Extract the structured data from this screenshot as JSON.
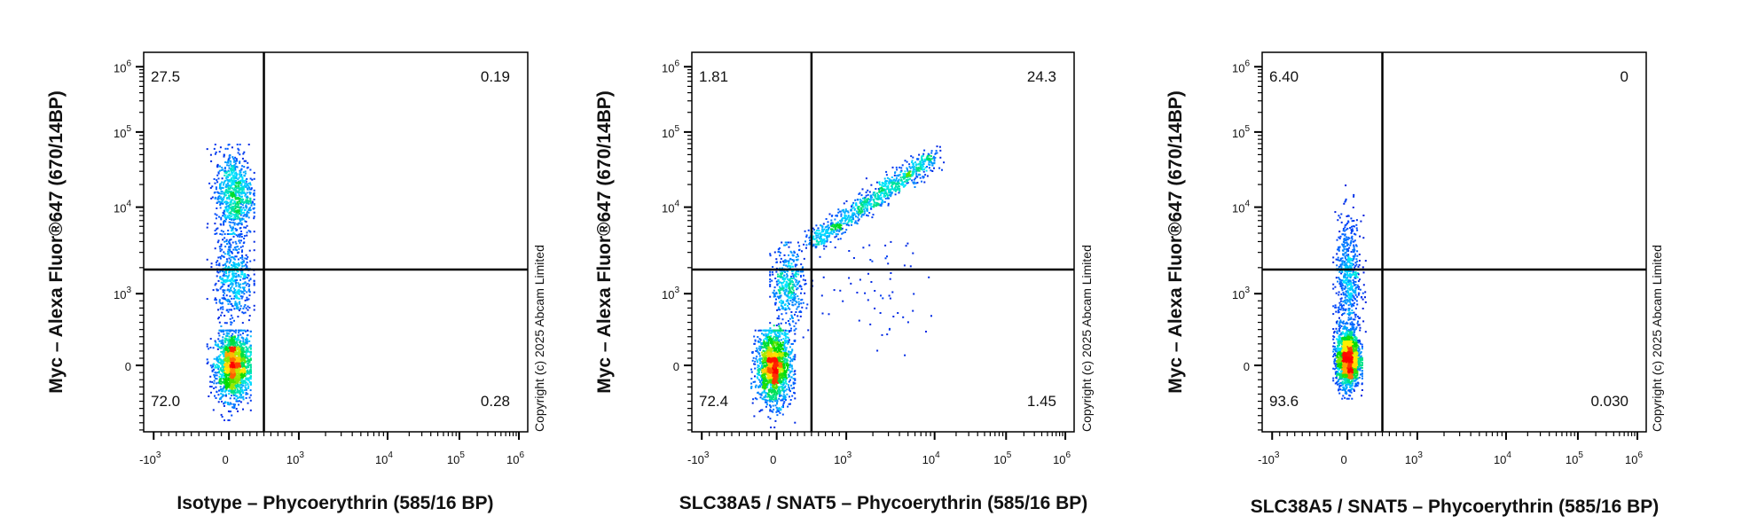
{
  "chart_data": [
    {
      "type": "scatter",
      "subtype": "flow-cytometry-density-dot-plot",
      "xlabel": "Isotype – Phycoerythrin (585/16 BP)",
      "ylabel": "Myc – Alexa Fluor®647 (670/14BP)",
      "x_scale": "biexponential",
      "y_scale": "biexponential",
      "xlim": [
        -2000,
        1000000
      ],
      "ylim": [
        -2000,
        1000000
      ],
      "x_ticks": [
        "-10^3",
        "0",
        "10^3",
        "10^4",
        "10^5",
        "10^6"
      ],
      "y_ticks": [
        "0",
        "10^3",
        "10^4",
        "10^5",
        "10^6"
      ],
      "quadrant_gate": {
        "x": 500,
        "y": 1900
      },
      "quadrants": {
        "upper_left": "27.5",
        "upper_right": "0.19",
        "lower_left": "72.0",
        "lower_right": "0.28"
      },
      "populations": [
        {
          "center": [
            50,
            0
          ],
          "x_range": [
            -300,
            300
          ],
          "y_range": [
            -700,
            500
          ],
          "count": 1600
        },
        {
          "center": [
            60,
            15000
          ],
          "x_range": [
            -300,
            350
          ],
          "y_range": [
            3000,
            70000
          ],
          "count": 800
        },
        {
          "center": [
            60,
            1500
          ],
          "x_range": [
            -300,
            350
          ],
          "y_range": [
            300,
            5000
          ],
          "count": 500
        }
      ],
      "copyright": "Copyright (c) 2025 Abcam Limited"
    },
    {
      "type": "scatter",
      "subtype": "flow-cytometry-density-dot-plot",
      "xlabel": "SLC38A5 / SNAT5 – Phycoerythrin (585/16 BP)",
      "ylabel": "Myc – Alexa Fluor®647 (670/14BP)",
      "x_scale": "biexponential",
      "y_scale": "biexponential",
      "xlim": [
        -2000,
        1000000
      ],
      "ylim": [
        -2000,
        1000000
      ],
      "x_ticks": [
        "-10^3",
        "0",
        "10^3",
        "10^4",
        "10^5",
        "10^6"
      ],
      "y_ticks": [
        "0",
        "10^3",
        "10^4",
        "10^5",
        "10^6"
      ],
      "quadrant_gate": {
        "x": 500,
        "y": 1900
      },
      "quadrants": {
        "upper_left": "1.81",
        "upper_right": "24.3",
        "lower_left": "72.4",
        "lower_right": "1.45"
      },
      "populations": [
        {
          "center": [
            -50,
            0
          ],
          "x_range": [
            -350,
            250
          ],
          "y_range": [
            -800,
            500
          ],
          "count": 1600
        },
        {
          "center": [
            150,
            1200
          ],
          "x_range": [
            -100,
            500
          ],
          "y_range": [
            300,
            4000
          ],
          "count": 450
        },
        {
          "start": [
            500,
            4000
          ],
          "end": [
            10000,
            50000
          ],
          "count": 900
        },
        {
          "center": [
            2000,
            1000
          ],
          "x_range": [
            500,
            20000
          ],
          "y_range": [
            200,
            10000
          ],
          "count": 60
        }
      ],
      "copyright": "Copyright (c) 2025 Abcam Limited"
    },
    {
      "type": "scatter",
      "subtype": "flow-cytometry-density-dot-plot",
      "xlabel": "SLC38A5 / SNAT5 – Phycoerythrin (585/16 BP)",
      "ylabel": "Myc – Alexa Fluor®647 (670/14BP)",
      "x_scale": "biexponential",
      "y_scale": "biexponential",
      "xlim": [
        -2000,
        1000000
      ],
      "ylim": [
        -2000,
        1000000
      ],
      "x_ticks": [
        "-10^3",
        "0",
        "10^3",
        "10^4",
        "10^5",
        "10^6"
      ],
      "y_ticks": [
        "0",
        "10^3",
        "10^4",
        "10^5",
        "10^6"
      ],
      "quadrant_gate": {
        "x": 500,
        "y": 1900
      },
      "quadrants": {
        "upper_left": "6.40",
        "upper_right": "0",
        "lower_left": "93.6",
        "lower_right": "0.030"
      },
      "populations": [
        {
          "center": [
            0,
            100
          ],
          "x_range": [
            -200,
            200
          ],
          "y_range": [
            -400,
            600
          ],
          "count": 1700
        },
        {
          "center": [
            0,
            1500
          ],
          "x_range": [
            -200,
            250
          ],
          "y_range": [
            400,
            20000
          ],
          "count": 600
        }
      ],
      "copyright": "Copyright (c) 2025 Abcam Limited"
    }
  ],
  "colors": {
    "density_low": "#0000c8",
    "density_mid": "#00e000",
    "density_high": "#ff0000",
    "gate": "#000000"
  }
}
